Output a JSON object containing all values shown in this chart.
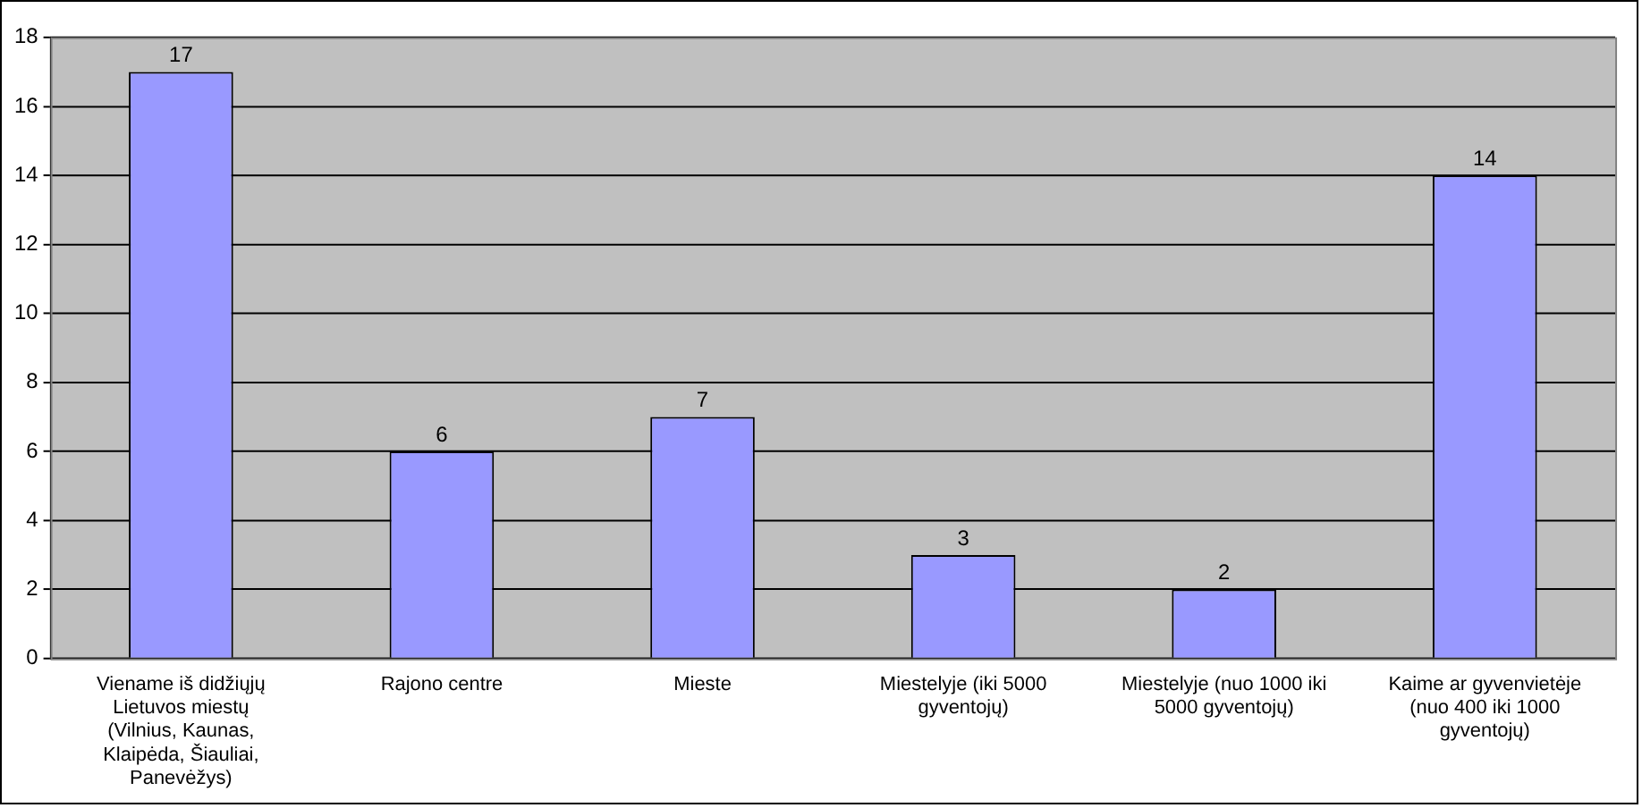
{
  "chart_data": {
    "type": "bar",
    "categories": [
      "Viename iš didžiųjų Lietuvos miestų (Vilnius, Kaunas, Klaipėda, Šiauliai, Panevėžys)",
      "Rajono centre",
      "Mieste",
      "Miestelyje (iki 5000 gyventojų)",
      "Miestelyje (nuo 1000 iki 5000 gyventojų)",
      "Kaime ar gyvenvietėje (nuo 400 iki 1000 gyventojų)"
    ],
    "values": [
      17,
      6,
      7,
      3,
      2,
      14
    ],
    "color": "#9999ff",
    "ylim": [
      0,
      18
    ],
    "yticks": [
      0,
      2,
      4,
      6,
      8,
      10,
      12,
      14,
      16,
      18
    ],
    "grid": "y",
    "legend": false,
    "data_labels": true
  }
}
